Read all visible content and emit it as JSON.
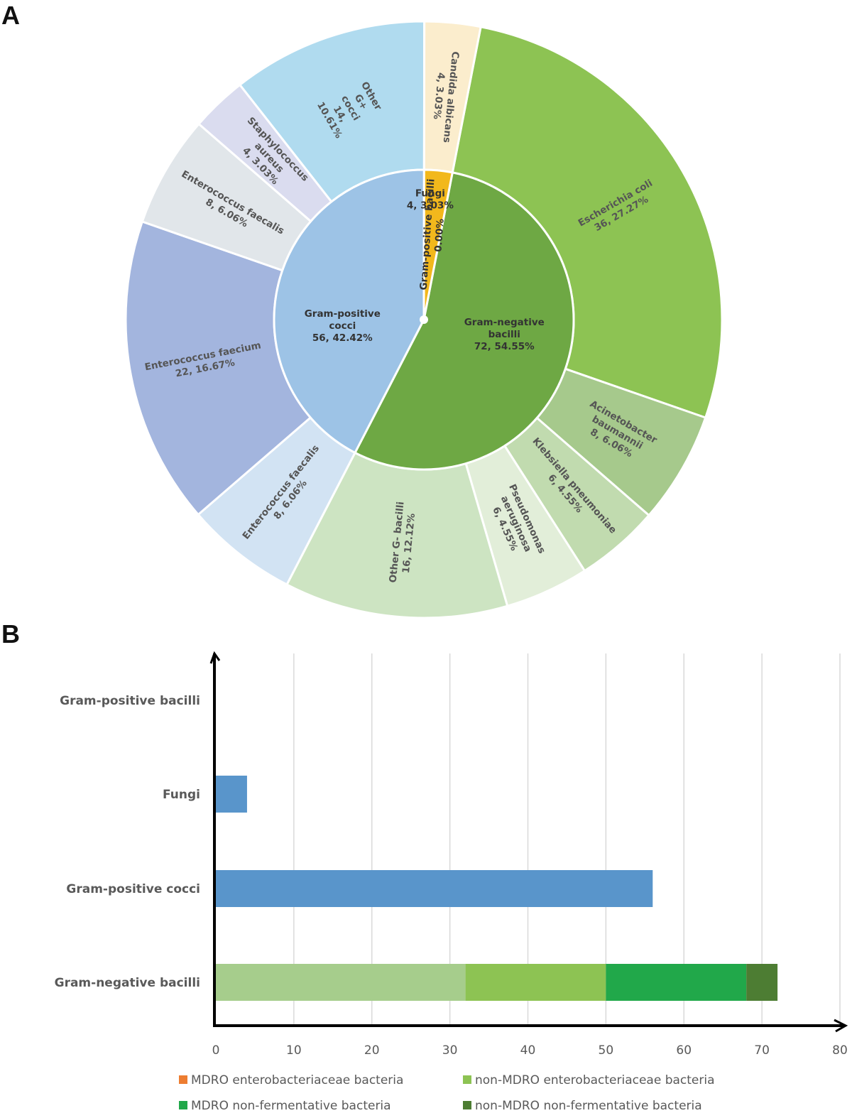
{
  "panels": {
    "a": "A",
    "b": "B"
  },
  "chart_data": [
    {
      "type": "sunburst",
      "inner": [
        {
          "name": "Gram-negative bacilli",
          "lines": [
            "Gram-negative",
            "bacilli",
            "72, 54.55%"
          ],
          "value": 72,
          "color": "#6ea844"
        },
        {
          "name": "Gram-positive cocci",
          "lines": [
            "Gram-positive",
            "cocci",
            "56, 42.42%"
          ],
          "value": 56,
          "color": "#9dc3e6"
        },
        {
          "name": "Fungi",
          "lines": [
            "Fungi",
            "4, 3.03%"
          ],
          "value": 4,
          "color": "#f2b81c"
        },
        {
          "name": "Gram-positive bacilli",
          "lines": [
            "Gram-positive bacilli",
            "0.00%"
          ],
          "value": 0,
          "color": "#7f7f7f"
        }
      ],
      "outer": [
        {
          "name": "Escherichia coli",
          "lines": [
            "Escherichia coli",
            "36, 27.27%"
          ],
          "value": 36,
          "color": "#8dc353"
        },
        {
          "name": "Acinetobacter baumannii",
          "lines": [
            "Acinetobacter",
            "baumannii",
            "8, 6.06%"
          ],
          "value": 8,
          "color": "#a6c98c"
        },
        {
          "name": "Klebsiella pneumoniae",
          "lines": [
            "Klebsiella pneumoniae",
            "6, 4.55%"
          ],
          "value": 6,
          "color": "#c1dbaf"
        },
        {
          "name": "Pseudomonas aeruginosa",
          "lines": [
            "Pseudomonas",
            "aeruginosa",
            "6, 4.55%"
          ],
          "value": 6,
          "color": "#e2eed9"
        },
        {
          "name": "Other G- bacilli",
          "lines": [
            "Other G- bacilli",
            "16, 12.12%"
          ],
          "value": 16,
          "color": "#cde4c2"
        },
        {
          "name": "Enterococcus faecalis",
          "lines": [
            "Enterococcus faecalis",
            "8, 6.06%"
          ],
          "value": 8,
          "color": "#d2e3f3"
        },
        {
          "name": "Enterococcus faecium",
          "lines": [
            "Enterococcus faecium",
            "22, 16.67%"
          ],
          "value": 22,
          "color": "#a3b5de"
        },
        {
          "name": "Enterococcus faecalis",
          "lines": [
            "Enterococcus faecalis",
            "8, 6.06%"
          ],
          "value": 8,
          "color": "#e1e6ea"
        },
        {
          "name": "Staphylococcus aureus",
          "lines": [
            "Staphylococcus",
            "aureus",
            "4, 3.03%"
          ],
          "value": 4,
          "color": "#dadcef"
        },
        {
          "name": "Other G+ cocci",
          "lines": [
            "Other",
            "G+",
            "cocci",
            "14,",
            "10.61%"
          ],
          "value": 14,
          "color": "#b0dbef"
        },
        {
          "name": "Candida albicans",
          "lines": [
            "Candida albicans",
            "4, 3.03%"
          ],
          "value": 4,
          "color": "#fbedcd"
        }
      ]
    },
    {
      "type": "bar",
      "orientation": "horizontal",
      "stacked": true,
      "categories": [
        "Gram-negative bacilli",
        "Gram-positive cocci",
        "Fungi",
        "Gram-positive bacilli"
      ],
      "segments": [
        [
          {
            "value": 32,
            "color": "#a6cd8c"
          },
          {
            "value": 18,
            "color": "#8dc353"
          },
          {
            "value": 18,
            "color": "#21a84a"
          },
          {
            "value": 4,
            "color": "#4d7d33"
          }
        ],
        [
          {
            "value": 56,
            "color": "#5995cb"
          }
        ],
        [
          {
            "value": 4,
            "color": "#5995cb"
          }
        ],
        []
      ],
      "xlim": [
        0,
        80
      ],
      "xticks": [
        0,
        10,
        20,
        30,
        40,
        50,
        60,
        70,
        80
      ],
      "grid": true,
      "legend": [
        {
          "name": "MDRO enterobacteriaceae bacteria",
          "color": "#ed7d31"
        },
        {
          "name": "non-MDRO enterobacteriaceae bacteria",
          "color": "#8dc353"
        },
        {
          "name": "MDRO non-fermentative bacteria",
          "color": "#21a84a"
        },
        {
          "name": "non-MDRO non-fermentative bacteria",
          "color": "#4d7d33"
        }
      ],
      "legend_position": "bottom"
    }
  ]
}
